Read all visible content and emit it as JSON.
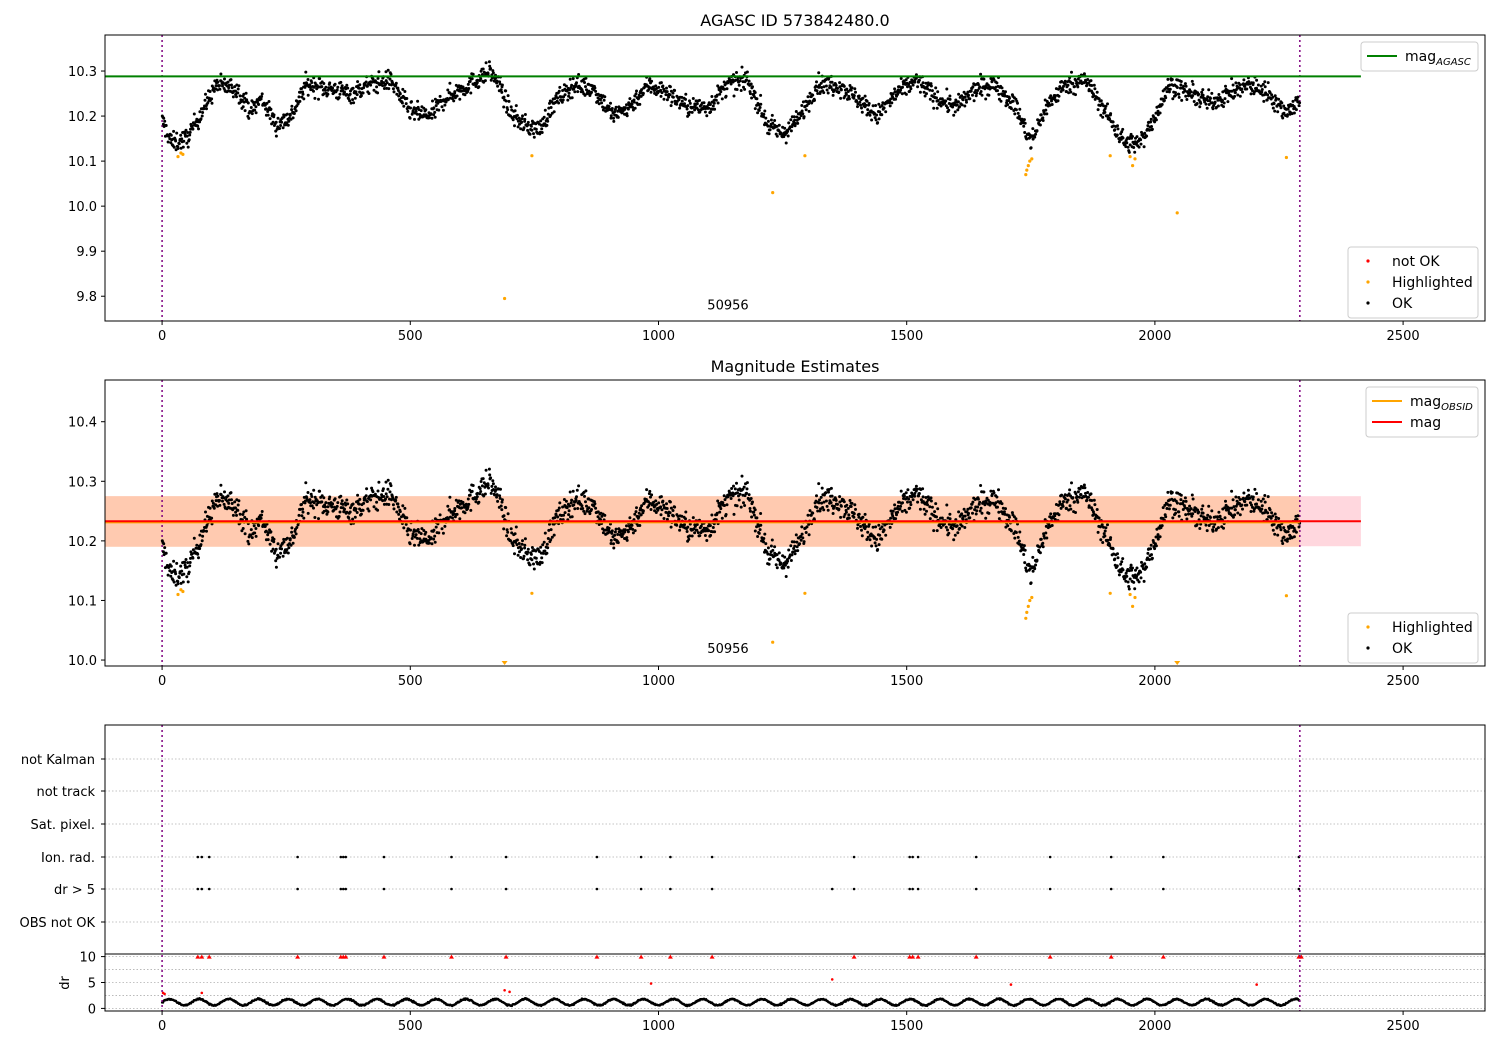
{
  "colors": {
    "ok": "#000000",
    "highlighted": "#ffa500",
    "not_ok": "#ff0000",
    "agasc_line": "#008000",
    "obsid_line": "#ffa500",
    "mag_line": "#ff0000",
    "obsid_band": "#ffc8a8",
    "mag_band": "#ffd0d8",
    "obs_boundary": "#800080"
  },
  "chart_data": [
    {
      "type": "scatter",
      "title": "AGASC ID 573842480.0",
      "xlim": [
        -115,
        2665
      ],
      "ylim": [
        9.745,
        10.38
      ],
      "xticks": [
        0,
        500,
        1000,
        1500,
        2000,
        2500
      ],
      "yticks": [
        9.8,
        9.9,
        10.0,
        10.1,
        10.2,
        10.3
      ],
      "ytick_labels": [
        "9.8",
        "9.9",
        "10.0",
        "10.1",
        "10.2",
        "10.3"
      ],
      "obs_boundaries": [
        0,
        2292
      ],
      "obsid_annotation": {
        "text": "50956",
        "x": 1140,
        "y": 9.77
      },
      "hlines": [
        {
          "name": "mag_AGASC",
          "y": 10.288,
          "x": [
            -115,
            2415
          ],
          "color": "#008000"
        }
      ],
      "series": [
        {
          "name": "not OK",
          "color": "#ff0000",
          "points": []
        },
        {
          "name": "Highlighted",
          "color": "#ffa500",
          "points": [
            [
              32,
              10.11
            ],
            [
              38,
              10.118
            ],
            [
              42,
              10.115
            ],
            [
              690,
              9.795
            ],
            [
              745,
              10.112
            ],
            [
              1230,
              10.03
            ],
            [
              1295,
              10.112
            ],
            [
              1740,
              10.07
            ],
            [
              1742,
              10.08
            ],
            [
              1745,
              10.09
            ],
            [
              1748,
              10.1
            ],
            [
              1752,
              10.105
            ],
            [
              1910,
              10.112
            ],
            [
              1950,
              10.11
            ],
            [
              1955,
              10.09
            ],
            [
              1960,
              10.105
            ],
            [
              2045,
              9.985
            ],
            [
              2265,
              10.108
            ]
          ]
        },
        {
          "name": "OK",
          "color": "#000000",
          "trend": [
            [
              0,
              10.19
            ],
            [
              20,
              10.14
            ],
            [
              50,
              10.15
            ],
            [
              80,
              10.21
            ],
            [
              110,
              10.27
            ],
            [
              150,
              10.26
            ],
            [
              180,
              10.21
            ],
            [
              200,
              10.24
            ],
            [
              230,
              10.18
            ],
            [
              260,
              10.2
            ],
            [
              290,
              10.27
            ],
            [
              340,
              10.26
            ],
            [
              380,
              10.25
            ],
            [
              420,
              10.27
            ],
            [
              460,
              10.28
            ],
            [
              500,
              10.21
            ],
            [
              540,
              10.2
            ],
            [
              570,
              10.24
            ],
            [
              620,
              10.27
            ],
            [
              660,
              10.3
            ],
            [
              680,
              10.27
            ],
            [
              700,
              10.21
            ],
            [
              730,
              10.18
            ],
            [
              760,
              10.17
            ],
            [
              790,
              10.23
            ],
            [
              830,
              10.27
            ],
            [
              870,
              10.26
            ],
            [
              910,
              10.2
            ],
            [
              940,
              10.22
            ],
            [
              980,
              10.27
            ],
            [
              1020,
              10.25
            ],
            [
              1060,
              10.22
            ],
            [
              1100,
              10.22
            ],
            [
              1140,
              10.27
            ],
            [
              1180,
              10.28
            ],
            [
              1220,
              10.18
            ],
            [
              1250,
              10.16
            ],
            [
              1280,
              10.19
            ],
            [
              1320,
              10.27
            ],
            [
              1360,
              10.27
            ],
            [
              1400,
              10.24
            ],
            [
              1440,
              10.2
            ],
            [
              1480,
              10.25
            ],
            [
              1520,
              10.28
            ],
            [
              1560,
              10.24
            ],
            [
              1600,
              10.22
            ],
            [
              1640,
              10.26
            ],
            [
              1680,
              10.27
            ],
            [
              1720,
              10.22
            ],
            [
              1750,
              10.14
            ],
            [
              1780,
              10.22
            ],
            [
              1820,
              10.27
            ],
            [
              1860,
              10.28
            ],
            [
              1900,
              10.21
            ],
            [
              1940,
              10.14
            ],
            [
              1970,
              10.14
            ],
            [
              2000,
              10.2
            ],
            [
              2030,
              10.27
            ],
            [
              2070,
              10.25
            ],
            [
              2110,
              10.23
            ],
            [
              2150,
              10.25
            ],
            [
              2190,
              10.27
            ],
            [
              2230,
              10.25
            ],
            [
              2260,
              10.21
            ],
            [
              2292,
              10.23
            ]
          ],
          "scatter": 0.022,
          "count": 2290
        }
      ],
      "legend": [
        {
          "entries": [
            {
              "label_base": "mag",
              "label_sub": "AGASC",
              "kind": "line",
              "color": "#008000"
            }
          ],
          "placement": "upper right"
        },
        {
          "entries": [
            {
              "label": "not OK",
              "kind": "dot",
              "color": "#ff0000"
            },
            {
              "label": "Highlighted",
              "kind": "dot",
              "color": "#ffa500"
            },
            {
              "label": "OK",
              "kind": "dot",
              "color": "#000000"
            }
          ],
          "placement": "lower right"
        }
      ]
    },
    {
      "type": "scatter",
      "title": "Magnitude Estimates",
      "xlim": [
        -115,
        2665
      ],
      "ylim": [
        9.99,
        10.47
      ],
      "xticks": [
        0,
        500,
        1000,
        1500,
        2000,
        2500
      ],
      "yticks": [
        10.0,
        10.1,
        10.2,
        10.3,
        10.4
      ],
      "ytick_labels": [
        "10.0",
        "10.1",
        "10.2",
        "10.3",
        "10.4"
      ],
      "obs_boundaries": [
        0,
        2292
      ],
      "obsid_annotation": {
        "text": "50956",
        "x": 1140,
        "y": 10.005
      },
      "bands": [
        {
          "name": "mag band",
          "y": [
            10.191,
            10.275
          ],
          "x": [
            -115,
            2415
          ],
          "color": "#ffd0d8"
        },
        {
          "name": "mag_OBSID band",
          "y": [
            10.19,
            10.275
          ],
          "x": [
            -115,
            2292
          ],
          "color": "#ffc8a8"
        }
      ],
      "hlines": [
        {
          "name": "mag_OBSID",
          "y": 10.231,
          "x": [
            -115,
            2292
          ],
          "color": "#ffa500"
        },
        {
          "name": "mag",
          "y": 10.233,
          "x": [
            -115,
            2415
          ],
          "color": "#ff0000"
        }
      ],
      "series": [
        {
          "name": "Highlighted",
          "color": "#ffa500",
          "points": [
            [
              32,
              10.11
            ],
            [
              38,
              10.118
            ],
            [
              42,
              10.115
            ],
            [
              690,
              9.995
            ],
            [
              745,
              10.112
            ],
            [
              1230,
              10.03
            ],
            [
              1295,
              10.112
            ],
            [
              1740,
              10.07
            ],
            [
              1742,
              10.08
            ],
            [
              1745,
              10.09
            ],
            [
              1748,
              10.1
            ],
            [
              1752,
              10.105
            ],
            [
              1910,
              10.112
            ],
            [
              1950,
              10.11
            ],
            [
              1955,
              10.09
            ],
            [
              1960,
              10.105
            ],
            [
              2045,
              9.995
            ],
            [
              2265,
              10.108
            ]
          ]
        },
        {
          "name": "OK",
          "color": "#000000",
          "same_as_panel": 0
        }
      ],
      "legend": [
        {
          "entries": [
            {
              "label_base": "mag",
              "label_sub": "OBSID",
              "kind": "line",
              "color": "#ffa500"
            },
            {
              "label": "mag",
              "kind": "line",
              "color": "#ff0000"
            }
          ],
          "placement": "upper right"
        },
        {
          "entries": [
            {
              "label": "Highlighted",
              "kind": "dot",
              "color": "#ffa500"
            },
            {
              "label": "OK",
              "kind": "dot",
              "color": "#000000"
            }
          ],
          "placement": "lower right"
        }
      ]
    },
    {
      "type": "scatter",
      "xlim": [
        -115,
        2665
      ],
      "xticks": [
        0,
        500,
        1000,
        1500,
        2000,
        2500
      ],
      "obs_boundaries": [
        0,
        2292
      ],
      "flag_rows": [
        "not Kalman",
        "not track",
        "Sat. pixel.",
        "Ion. rad.",
        "dr > 5",
        "OBS not OK"
      ],
      "flag_points": {
        "Ion. rad.": [
          72,
          80,
          95,
          273,
          360,
          365,
          370,
          447,
          583,
          693,
          876,
          965,
          1024,
          1108,
          1394,
          1506,
          1512,
          1523,
          1640,
          1789,
          1912,
          2017,
          2290
        ],
        "dr > 5": [
          72,
          80,
          95,
          273,
          360,
          365,
          370,
          447,
          583,
          693,
          876,
          965,
          1024,
          1108,
          1350,
          1394,
          1506,
          1512,
          1523,
          1640,
          1789,
          1912,
          2017,
          2290
        ]
      },
      "dr_panel": {
        "ylabel": "dr",
        "ylim": [
          -0.5,
          10.5
        ],
        "yticks": [
          0,
          5,
          10
        ],
        "ytick_labels": [
          "0",
          "5",
          "10"
        ],
        "clipped_value": 10,
        "clipped_points": [
          72,
          80,
          95,
          273,
          360,
          365,
          370,
          447,
          583,
          693,
          876,
          965,
          1024,
          1108,
          1394,
          1506,
          1512,
          1523,
          1640,
          1789,
          1912,
          2017,
          2290,
          2295
        ],
        "outliers": [
          [
            2,
            3.0
          ],
          [
            5,
            2.8
          ],
          [
            80,
            3.0
          ],
          [
            690,
            3.5
          ],
          [
            700,
            3.2
          ],
          [
            985,
            4.8
          ],
          [
            1350,
            5.6
          ],
          [
            1710,
            4.6
          ],
          [
            2205,
            4.6
          ]
        ],
        "baseline": {
          "mean": 1.2,
          "amplitude": 0.6,
          "count": 2290
        }
      }
    }
  ]
}
